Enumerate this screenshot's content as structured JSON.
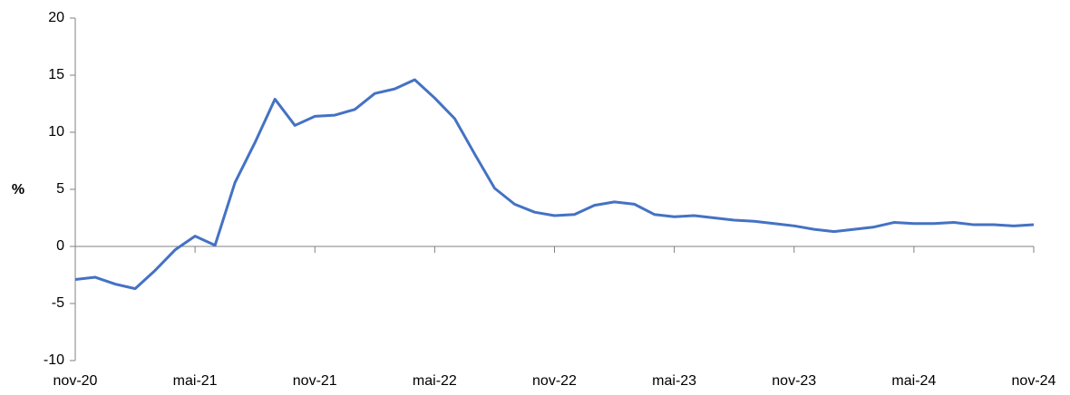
{
  "chart_data": {
    "type": "line",
    "ylabel": "%",
    "categories": [
      "nov-20",
      null,
      null,
      null,
      null,
      null,
      "mai-21",
      null,
      null,
      null,
      null,
      null,
      "nov-21",
      null,
      null,
      null,
      null,
      null,
      "mai-22",
      null,
      null,
      null,
      null,
      null,
      "nov-22",
      null,
      null,
      null,
      null,
      null,
      "mai-23",
      null,
      null,
      null,
      null,
      null,
      "nov-23",
      null,
      null,
      null,
      null,
      null,
      "mai-24",
      null,
      null,
      null,
      null,
      null,
      "nov-24"
    ],
    "series": [
      {
        "color": "#4472c4",
        "values": [
          -2.9,
          -2.7,
          -3.3,
          -3.7,
          -2.1,
          -0.3,
          0.9,
          0.1,
          5.6,
          9.1,
          12.9,
          10.6,
          11.4,
          11.5,
          12.0,
          13.4,
          13.8,
          14.6,
          13.0,
          11.2,
          8.1,
          5.1,
          3.7,
          3.0,
          2.7,
          2.8,
          3.6,
          3.9,
          3.7,
          2.8,
          2.6,
          2.7,
          2.5,
          2.3,
          2.2,
          2.0,
          1.8,
          1.5,
          1.3,
          1.5,
          1.7,
          2.1,
          2.0,
          2.0,
          2.1,
          1.9,
          1.9,
          1.8,
          1.9
        ]
      }
    ],
    "ylim": [
      -10,
      20
    ],
    "yticks": [
      -10,
      -5,
      0,
      5,
      10,
      15,
      20
    ]
  }
}
